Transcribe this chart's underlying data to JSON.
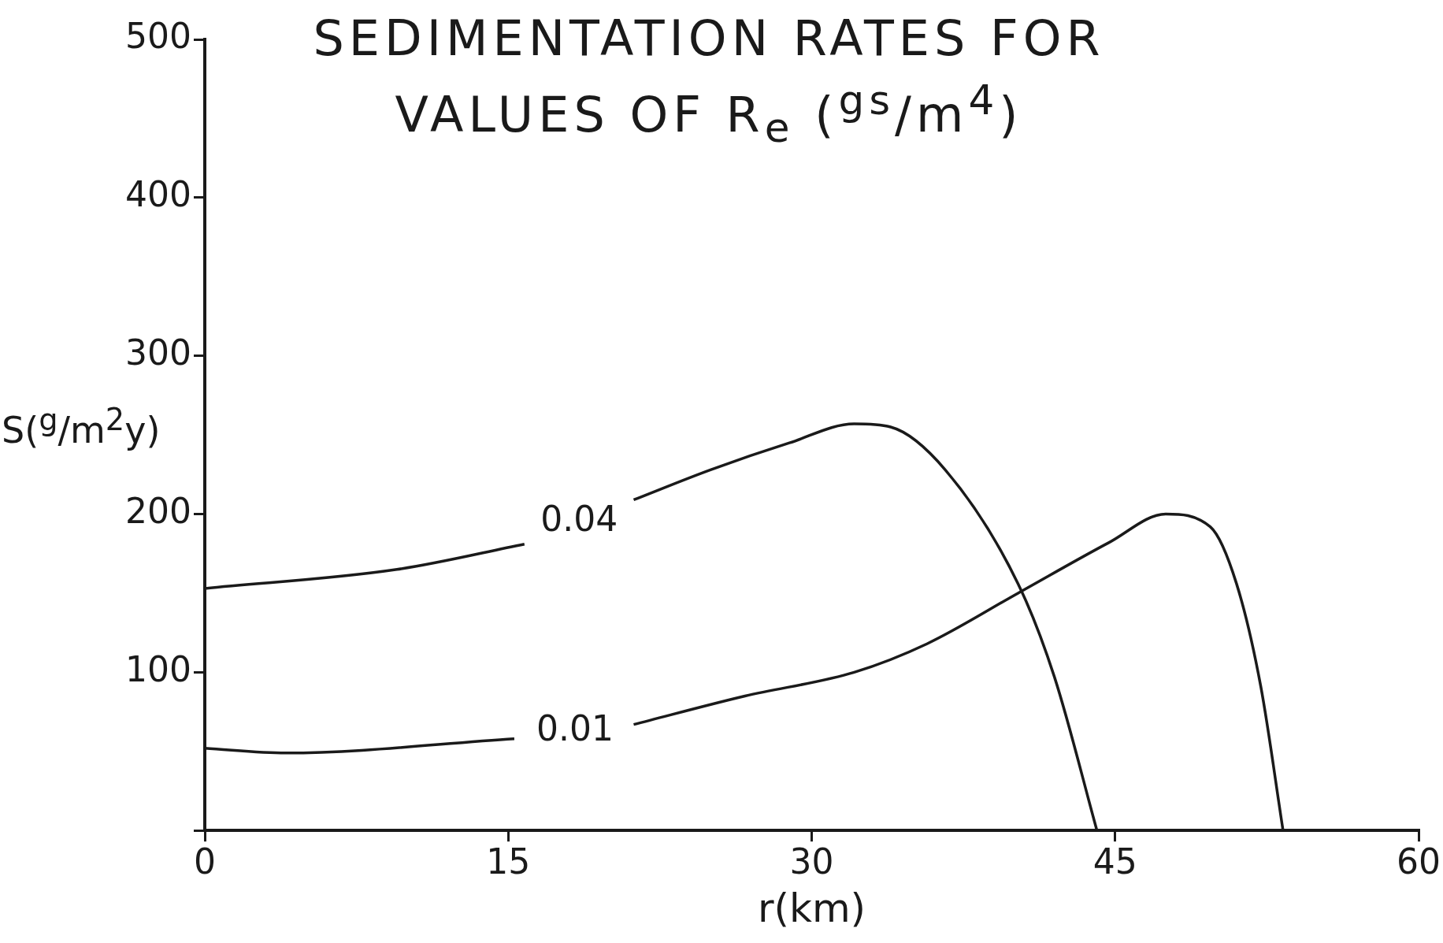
{
  "chart_data": {
    "type": "line",
    "title": "SEDIMENTATION RATES FOR VALUES OF R$_{e}$ ($^{gs}$/m$^{4}$)",
    "xlabel": "r(km)",
    "ylabel": "S($^{g}$/m$^{2}$y)",
    "series": [
      {
        "name": "0.04",
        "color": "#1a1a1a",
        "x": [
          0,
          9.5,
          15.8,
          18.5,
          21.2,
          25,
          28.9,
          32.1,
          33.9,
          36.6,
          40.2,
          42,
          44.1
        ],
        "values": [
          153,
          165,
          181,
          null,
          209,
          228,
          245,
          257,
          255,
          228,
          156,
          97,
          0
        ]
      },
      {
        "name": "0.01",
        "color": "#1a1a1a",
        "x": [
          0,
          4,
          15.3,
          18.3,
          21.2,
          26.7,
          32.1,
          35.7,
          40.2,
          44.7,
          47.5,
          49.7,
          51,
          52.2,
          53.3
        ],
        "values": [
          52,
          49,
          58,
          null,
          67,
          85,
          100,
          118,
          150,
          182,
          200,
          192,
          156,
          91,
          0
        ]
      }
    ],
    "xlim": [
      0,
      60
    ],
    "xticks": [
      0,
      15,
      30,
      45,
      60
    ],
    "ylim": [
      0,
      500
    ],
    "yticks": [
      {
        "value": 0,
        "label": null
      },
      100,
      200,
      300,
      400,
      500
    ],
    "grid": false,
    "legend": false,
    "marker": "none",
    "line_style": "solid"
  }
}
